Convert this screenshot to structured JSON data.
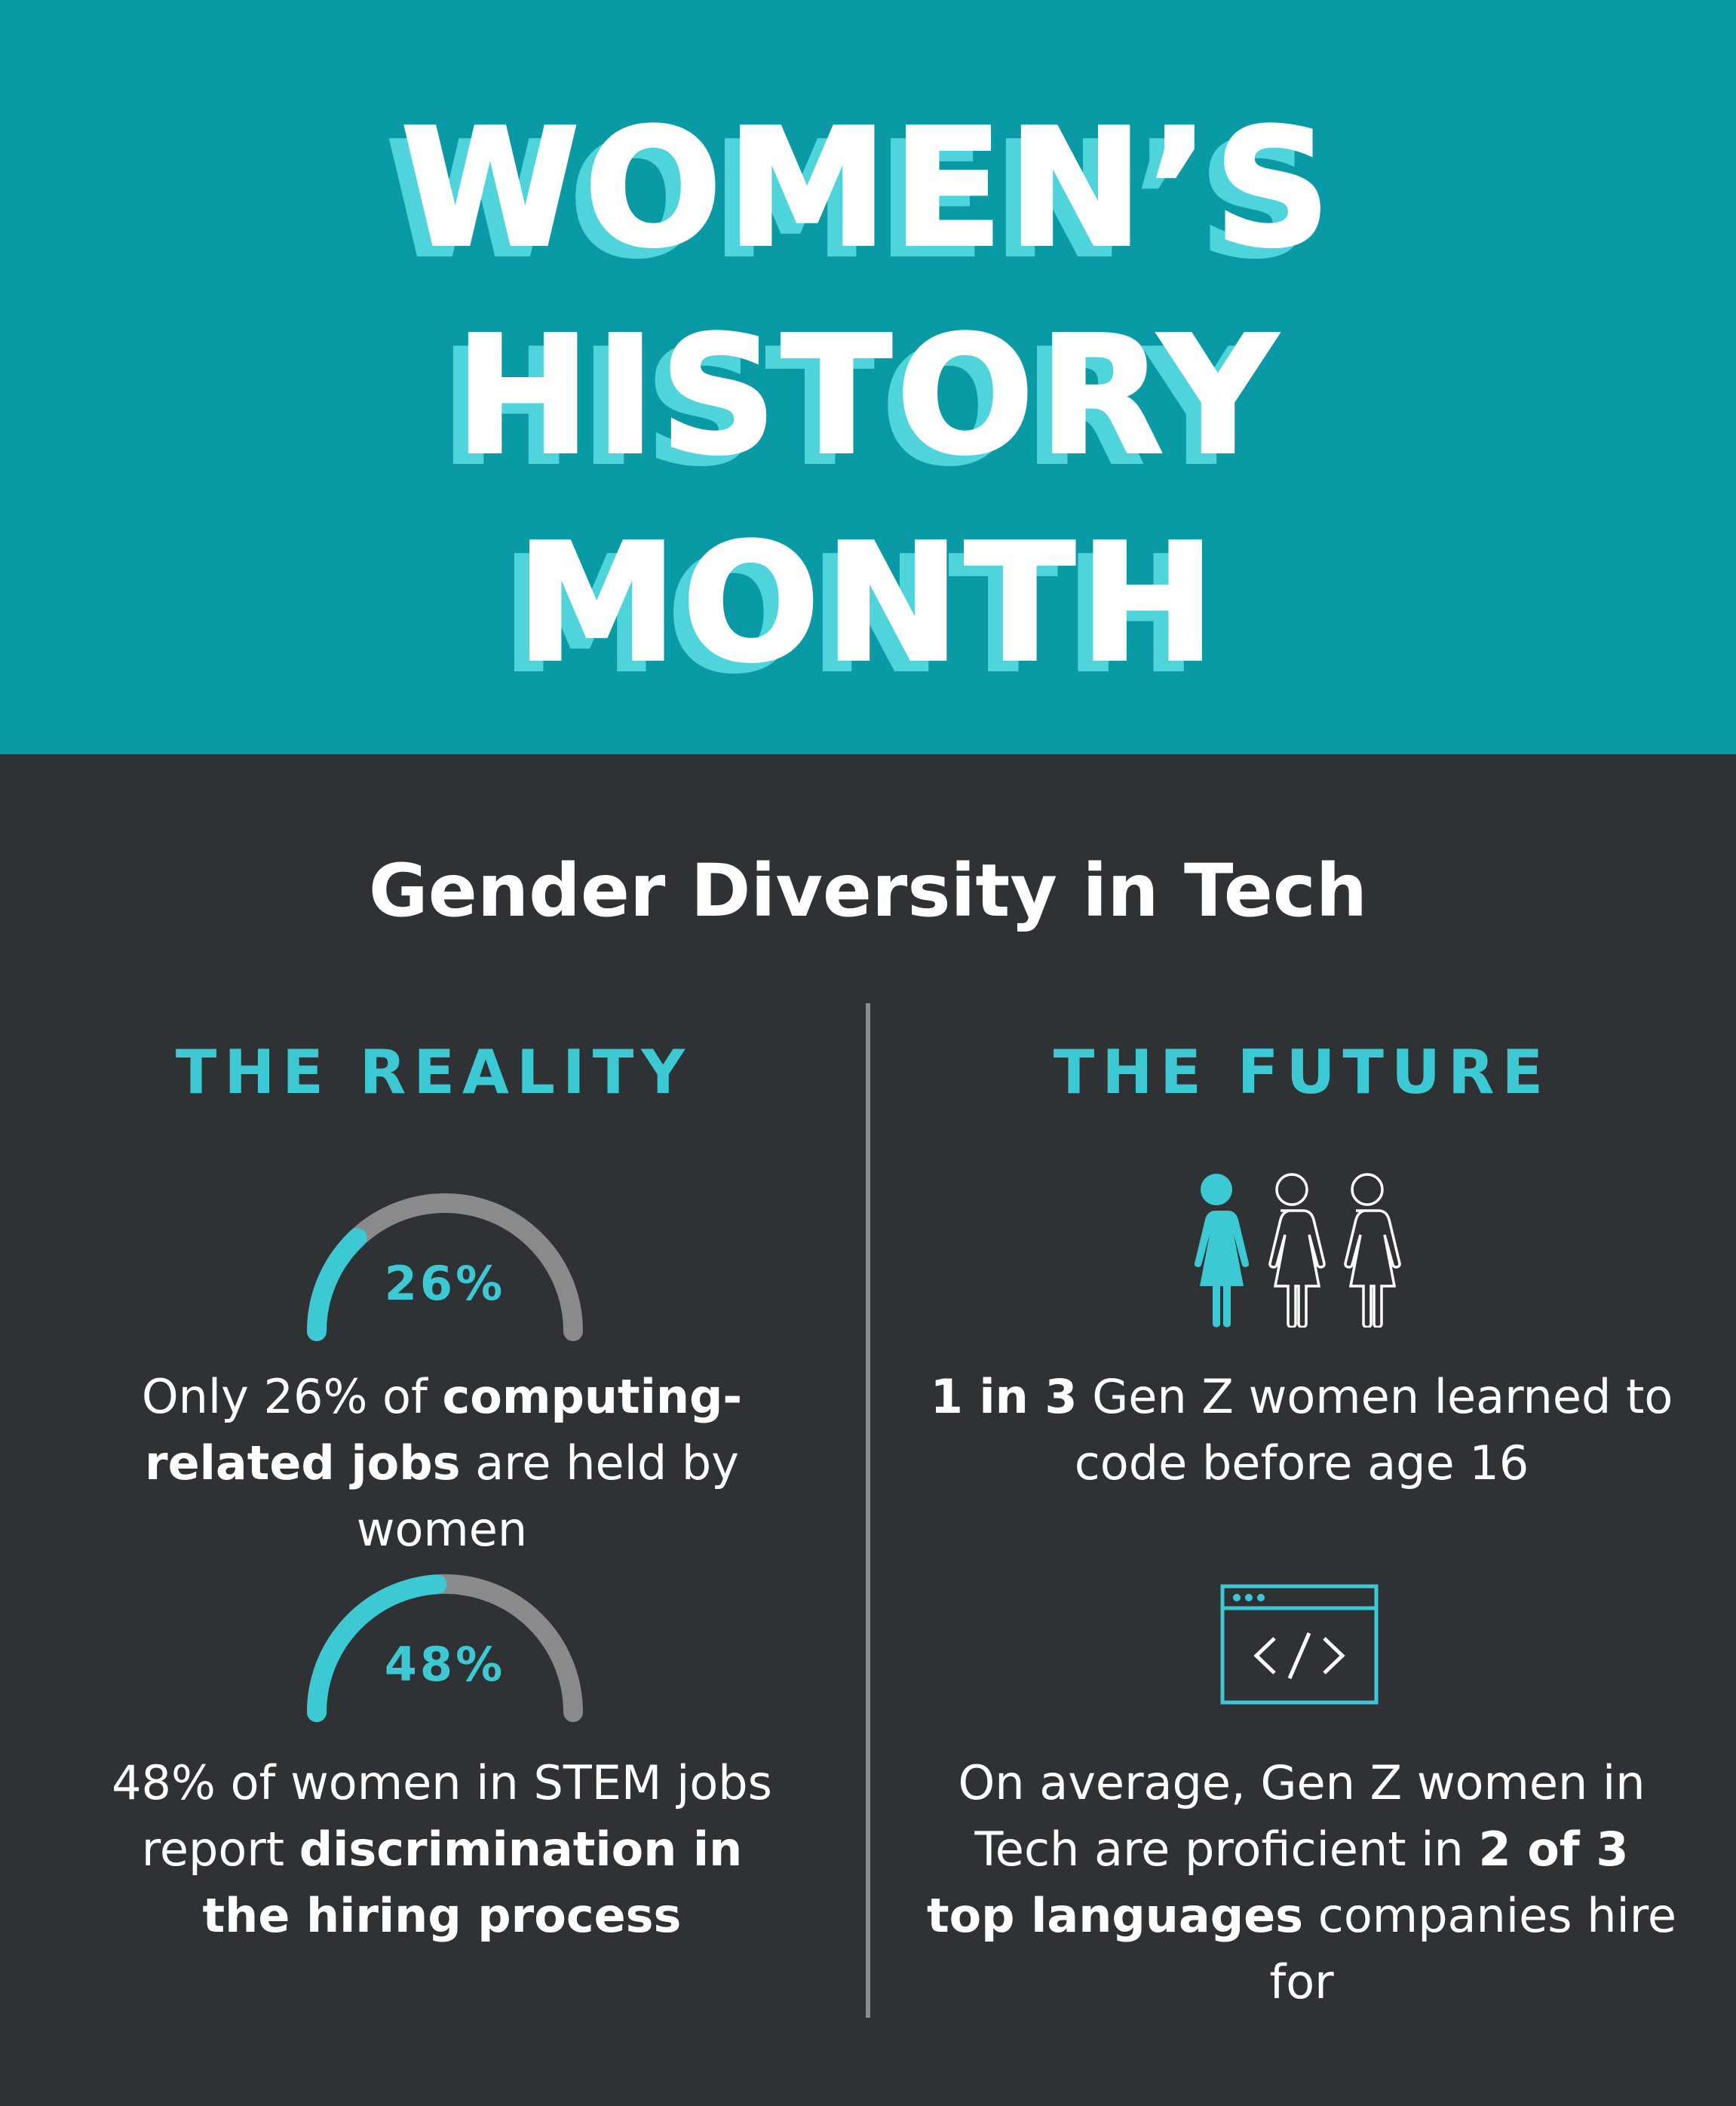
{
  "header": {
    "title_lines": [
      "WOMEN’S",
      "HISTORY",
      "MONTH"
    ]
  },
  "subtitle": "Gender Diversity in Tech",
  "reality": {
    "heading": "THE REALITY",
    "stats": [
      {
        "gauge_value": 26,
        "gauge_label": "26%",
        "text_plain_1": "Only 26% of ",
        "text_bold_1": "computing-related jobs",
        "text_plain_2": " are held by women"
      },
      {
        "gauge_value": 48,
        "gauge_label": "48%",
        "text_plain_1": "48% of women in STEM jobs report ",
        "text_bold_1": "discrimination in the hiring process"
      }
    ]
  },
  "future": {
    "heading": "THE FUTURE",
    "stats": [
      {
        "icon": "three-women-icon",
        "text_bold_1": "1 in 3",
        "text_plain_1": " Gen Z women learned to code before age 16"
      },
      {
        "icon": "code-window-icon",
        "text_plain_1": "On average, Gen Z women in Tech are proficient in ",
        "text_bold_1": "2 of 3 top languages",
        "text_plain_2": " companies hire for"
      }
    ]
  },
  "colors": {
    "teal_header": "#0a9aa5",
    "teal_accent": "#3cc9d4",
    "dark_bg": "#2f3234",
    "gauge_gray": "#888a8c",
    "white": "#ffffff"
  }
}
